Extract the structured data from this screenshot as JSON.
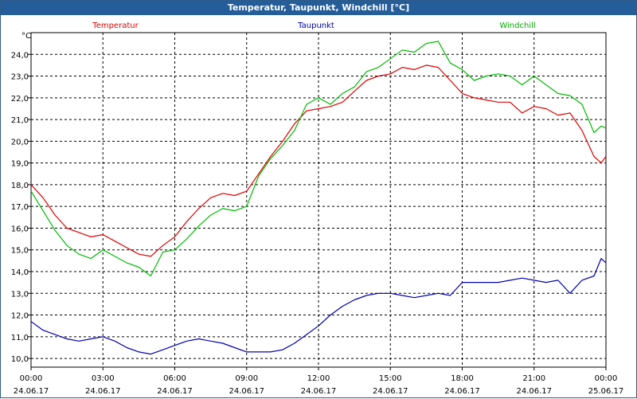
{
  "window": {
    "title": "Temperatur, Taupunkt, Windchill [°C]"
  },
  "chart_data": {
    "type": "line",
    "title": "Temperatur, Taupunkt, Windchill [°C]",
    "ylabel": "°C",
    "xlabel": "",
    "ylim": [
      9.6,
      25.0
    ],
    "xlim": [
      0,
      24
    ],
    "grid": true,
    "y_ticks": [
      "10,0",
      "11,0",
      "12,0",
      "13,0",
      "14,0",
      "15,0",
      "16,0",
      "17,0",
      "18,0",
      "19,0",
      "20,0",
      "21,0",
      "22,0",
      "23,0",
      "24,0"
    ],
    "x_ticks": [
      {
        "time": "00:00",
        "date": "24.06.17"
      },
      {
        "time": "03:00",
        "date": "24.06.17"
      },
      {
        "time": "06:00",
        "date": "24.06.17"
      },
      {
        "time": "09:00",
        "date": "24.06.17"
      },
      {
        "time": "12:00",
        "date": "24.06.17"
      },
      {
        "time": "15:00",
        "date": "24.06.17"
      },
      {
        "time": "18:00",
        "date": "24.06.17"
      },
      {
        "time": "21:00",
        "date": "24.06.17"
      },
      {
        "time": "00:00",
        "date": "25.06.17"
      }
    ],
    "series": [
      {
        "name": "Temperatur",
        "color": "#e00000",
        "x": [
          0,
          0.5,
          1,
          1.5,
          2,
          2.5,
          3,
          3.5,
          4,
          4.5,
          5,
          5.5,
          6,
          6.5,
          7,
          7.5,
          8,
          8.5,
          9,
          9.5,
          10,
          10.5,
          11,
          11.5,
          12,
          12.5,
          13,
          13.5,
          14,
          14.5,
          15,
          15.5,
          16,
          16.5,
          17,
          17.5,
          18,
          18.5,
          19,
          19.5,
          20,
          20.5,
          21,
          21.5,
          22,
          22.5,
          23,
          23.5,
          23.8,
          24
        ],
        "values": [
          18.0,
          17.4,
          16.6,
          16.0,
          15.8,
          15.6,
          15.7,
          15.4,
          15.1,
          14.8,
          14.7,
          15.2,
          15.6,
          16.3,
          16.9,
          17.4,
          17.6,
          17.5,
          17.7,
          18.5,
          19.3,
          20.0,
          20.8,
          21.4,
          21.5,
          21.6,
          21.8,
          22.3,
          22.8,
          23.0,
          23.1,
          23.4,
          23.3,
          23.5,
          23.4,
          22.8,
          22.2,
          22.0,
          21.9,
          21.8,
          21.8,
          21.3,
          21.6,
          21.5,
          21.2,
          21.3,
          20.5,
          19.3,
          19.0,
          19.3
        ]
      },
      {
        "name": "Taupunkt",
        "color": "#0000b0",
        "x": [
          0,
          0.5,
          1,
          1.5,
          2,
          2.5,
          3,
          3.5,
          4,
          4.5,
          5,
          5.5,
          6,
          6.5,
          7,
          7.5,
          8,
          8.5,
          9,
          9.5,
          10,
          10.5,
          11,
          11.5,
          12,
          12.5,
          13,
          13.5,
          14,
          14.5,
          15,
          15.5,
          16,
          16.5,
          17,
          17.5,
          18,
          18.5,
          19,
          19.5,
          20,
          20.5,
          21,
          21.5,
          22,
          22.5,
          23,
          23.5,
          23.8,
          24
        ],
        "values": [
          11.7,
          11.3,
          11.1,
          10.9,
          10.8,
          10.9,
          11.0,
          10.8,
          10.5,
          10.3,
          10.2,
          10.4,
          10.6,
          10.8,
          10.9,
          10.8,
          10.7,
          10.5,
          10.3,
          10.3,
          10.3,
          10.4,
          10.7,
          11.1,
          11.5,
          12.0,
          12.4,
          12.7,
          12.9,
          13.0,
          13.0,
          12.9,
          12.8,
          12.9,
          13.0,
          12.9,
          13.5,
          13.5,
          13.5,
          13.5,
          13.6,
          13.7,
          13.6,
          13.5,
          13.6,
          13.0,
          13.6,
          13.8,
          14.6,
          14.4
        ]
      },
      {
        "name": "Windchill",
        "color": "#00bb00",
        "x": [
          0,
          0.5,
          1,
          1.5,
          2,
          2.5,
          3,
          3.5,
          4,
          4.5,
          5,
          5.5,
          6,
          6.5,
          7,
          7.5,
          8,
          8.5,
          9,
          9.5,
          10,
          10.5,
          11,
          11.5,
          12,
          12.5,
          13,
          13.5,
          14,
          14.5,
          15,
          15.5,
          16,
          16.5,
          17,
          17.5,
          18,
          18.5,
          19,
          19.5,
          20,
          20.5,
          21,
          21.5,
          22,
          22.5,
          23,
          23.5,
          23.8,
          24
        ],
        "values": [
          17.7,
          16.8,
          15.9,
          15.2,
          14.8,
          14.6,
          15.0,
          14.7,
          14.4,
          14.2,
          13.8,
          14.9,
          15.0,
          15.5,
          16.1,
          16.6,
          16.9,
          16.8,
          17.0,
          18.4,
          19.2,
          19.8,
          20.5,
          21.7,
          22.0,
          21.7,
          22.2,
          22.5,
          23.2,
          23.4,
          23.8,
          24.2,
          24.1,
          24.5,
          24.6,
          23.6,
          23.3,
          22.8,
          23.0,
          23.1,
          23.0,
          22.6,
          23.0,
          22.6,
          22.2,
          22.1,
          21.7,
          20.4,
          20.7,
          20.6
        ]
      }
    ]
  }
}
